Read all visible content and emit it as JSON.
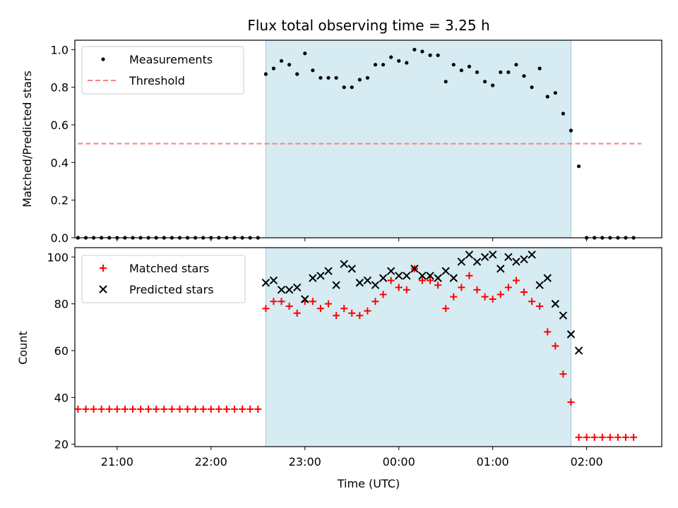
{
  "chart_data": [
    {
      "type": "scatter",
      "title": "Flux total observing time = 3.25 h",
      "ylabel": "Matched/Predicted stars",
      "ylim": [
        0,
        1.05
      ],
      "yticks": [
        "0.0",
        "0.2",
        "0.4",
        "0.6",
        "0.8",
        "1.0"
      ],
      "ytick_values": [
        0,
        0.2,
        0.4,
        0.6,
        0.8,
        1.0
      ],
      "xlim": [
        "20:33",
        "02:48"
      ],
      "shaded_span": [
        "22:35",
        "01:50"
      ],
      "legend_position": "upper-left",
      "threshold": {
        "name": "Threshold",
        "x": [
          "20:35",
          "02:35"
        ],
        "y": 0.5,
        "color": "#ff7f7f"
      },
      "series": [
        {
          "name": "Measurements",
          "color": "#000000",
          "marker": "dot",
          "x": [
            "20:35",
            "20:40",
            "20:45",
            "20:50",
            "20:55",
            "21:00",
            "21:05",
            "21:10",
            "21:15",
            "21:20",
            "21:25",
            "21:30",
            "21:35",
            "21:40",
            "21:45",
            "21:50",
            "21:55",
            "22:00",
            "22:05",
            "22:10",
            "22:15",
            "22:20",
            "22:25",
            "22:30",
            "22:35",
            "22:40",
            "22:45",
            "22:50",
            "22:55",
            "23:00",
            "23:05",
            "23:10",
            "23:15",
            "23:20",
            "23:25",
            "23:30",
            "23:35",
            "23:40",
            "23:45",
            "23:50",
            "23:55",
            "00:00",
            "00:05",
            "00:10",
            "00:15",
            "00:20",
            "00:25",
            "00:30",
            "00:35",
            "00:40",
            "00:45",
            "00:50",
            "00:55",
            "01:00",
            "01:05",
            "01:10",
            "01:15",
            "01:20",
            "01:25",
            "01:30",
            "01:35",
            "01:40",
            "01:45",
            "01:50",
            "01:55",
            "02:00",
            "02:05",
            "02:10",
            "02:15",
            "02:20",
            "02:25",
            "02:30"
          ],
          "y": [
            0,
            0,
            0,
            0,
            0,
            0,
            0,
            0,
            0,
            0,
            0,
            0,
            0,
            0,
            0,
            0,
            0,
            0,
            0,
            0,
            0,
            0,
            0,
            0,
            0.87,
            0.9,
            0.94,
            0.92,
            0.87,
            0.98,
            0.89,
            0.85,
            0.85,
            0.85,
            0.8,
            0.8,
            0.84,
            0.85,
            0.92,
            0.92,
            0.96,
            0.94,
            0.93,
            1.0,
            0.99,
            0.97,
            0.97,
            0.83,
            0.92,
            0.89,
            0.91,
            0.88,
            0.83,
            0.81,
            0.88,
            0.88,
            0.92,
            0.86,
            0.8,
            0.9,
            0.75,
            0.77,
            0.66,
            0.57,
            0.38,
            0,
            0,
            0,
            0,
            0,
            0,
            0
          ]
        }
      ]
    },
    {
      "type": "scatter",
      "xlabel": "Time (UTC)",
      "ylabel": "Count",
      "ylim": [
        19,
        104
      ],
      "yticks": [
        "20",
        "40",
        "60",
        "80",
        "100"
      ],
      "ytick_values": [
        20,
        40,
        60,
        80,
        100
      ],
      "xlim": [
        "20:33",
        "02:48"
      ],
      "xticks": [
        "21:00",
        "22:00",
        "23:00",
        "00:00",
        "01:00",
        "02:00"
      ],
      "shaded_span": [
        "22:35",
        "01:50"
      ],
      "legend_position": "upper-left",
      "series": [
        {
          "name": "Matched stars",
          "color": "#ff0000",
          "marker": "plus",
          "x": [
            "20:35",
            "20:40",
            "20:45",
            "20:50",
            "20:55",
            "21:00",
            "21:05",
            "21:10",
            "21:15",
            "21:20",
            "21:25",
            "21:30",
            "21:35",
            "21:40",
            "21:45",
            "21:50",
            "21:55",
            "22:00",
            "22:05",
            "22:10",
            "22:15",
            "22:20",
            "22:25",
            "22:30",
            "22:35",
            "22:40",
            "22:45",
            "22:50",
            "22:55",
            "23:00",
            "23:05",
            "23:10",
            "23:15",
            "23:20",
            "23:25",
            "23:30",
            "23:35",
            "23:40",
            "23:45",
            "23:50",
            "23:55",
            "00:00",
            "00:05",
            "00:10",
            "00:15",
            "00:20",
            "00:25",
            "00:30",
            "00:35",
            "00:40",
            "00:45",
            "00:50",
            "00:55",
            "01:00",
            "01:05",
            "01:10",
            "01:15",
            "01:20",
            "01:25",
            "01:30",
            "01:35",
            "01:40",
            "01:45",
            "01:50",
            "01:55",
            "02:00",
            "02:05",
            "02:10",
            "02:15",
            "02:20",
            "02:25",
            "02:30"
          ],
          "y": [
            35,
            35,
            35,
            35,
            35,
            35,
            35,
            35,
            35,
            35,
            35,
            35,
            35,
            35,
            35,
            35,
            35,
            35,
            35,
            35,
            35,
            35,
            35,
            35,
            78,
            81,
            81,
            79,
            76,
            81,
            81,
            78,
            80,
            75,
            78,
            76,
            75,
            77,
            81,
            84,
            90,
            87,
            86,
            95,
            90,
            90,
            88,
            78,
            83,
            87,
            92,
            86,
            83,
            82,
            84,
            87,
            90,
            85,
            81,
            79,
            68,
            62,
            50,
            38,
            23,
            23,
            23,
            23,
            23,
            23,
            23,
            23
          ]
        },
        {
          "name": "Predicted stars",
          "color": "#000000",
          "marker": "x",
          "x": [
            "22:35",
            "22:40",
            "22:45",
            "22:50",
            "22:55",
            "23:00",
            "23:05",
            "23:10",
            "23:15",
            "23:20",
            "23:25",
            "23:30",
            "23:35",
            "23:40",
            "23:45",
            "23:50",
            "23:55",
            "00:00",
            "00:05",
            "00:10",
            "00:15",
            "00:20",
            "00:25",
            "00:30",
            "00:35",
            "00:40",
            "00:45",
            "00:50",
            "00:55",
            "01:00",
            "01:05",
            "01:10",
            "01:15",
            "01:20",
            "01:25",
            "01:30",
            "01:35",
            "01:40",
            "01:45",
            "01:50",
            "01:55"
          ],
          "y": [
            89,
            90,
            86,
            86,
            87,
            82,
            91,
            92,
            94,
            88,
            97,
            95,
            89,
            90,
            88,
            91,
            94,
            92,
            92,
            95,
            92,
            92,
            91,
            94,
            91,
            98,
            101,
            98,
            100,
            101,
            95,
            100,
            98,
            99,
            101,
            88,
            91,
            80,
            75,
            67,
            60
          ]
        }
      ]
    }
  ]
}
